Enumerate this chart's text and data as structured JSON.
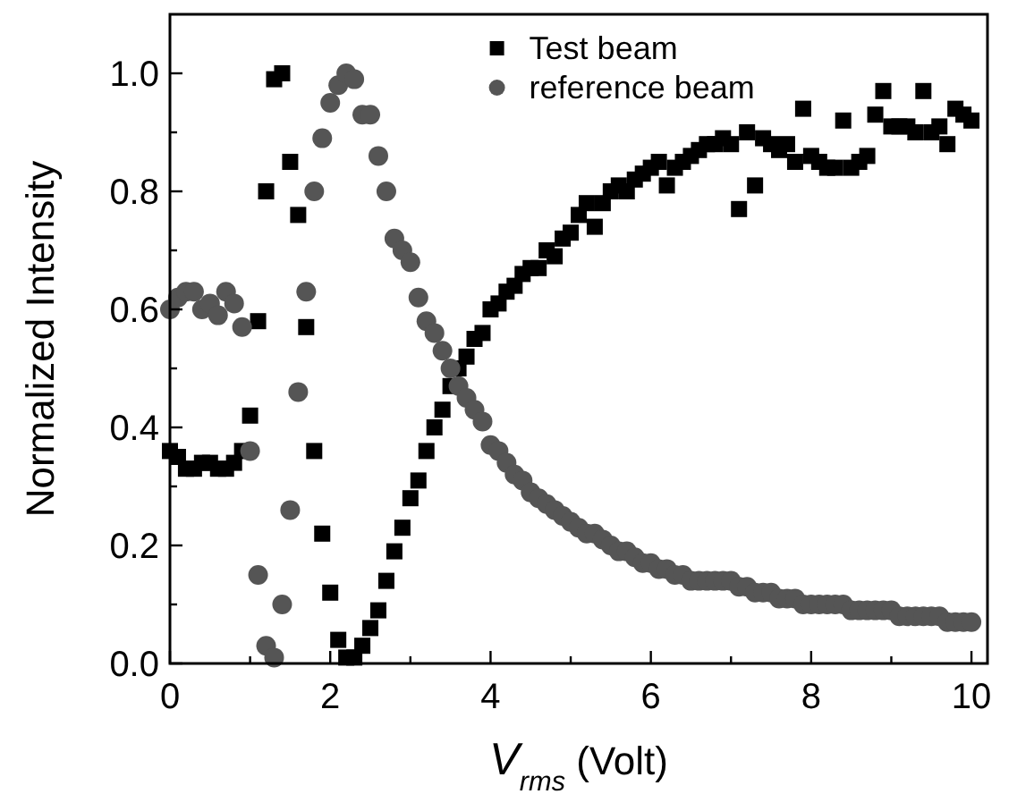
{
  "chart_data": {
    "type": "scatter",
    "xlabel": "V$_{rms}$ (Volt)",
    "ylabel": "Normalized Intensity",
    "x": [
      0,
      0.1,
      0.2,
      0.3,
      0.4,
      0.5,
      0.6,
      0.7,
      0.8,
      0.9,
      1,
      1.1,
      1.2,
      1.3,
      1.4,
      1.5,
      1.6,
      1.7,
      1.8,
      1.9,
      2,
      2.1,
      2.2,
      2.3,
      2.4,
      2.5,
      2.6,
      2.7,
      2.8,
      2.9,
      3,
      3.1,
      3.2,
      3.3,
      3.4,
      3.5,
      3.6,
      3.7,
      3.8,
      3.9,
      4,
      4.1,
      4.2,
      4.3,
      4.4,
      4.5,
      4.6,
      4.7,
      4.8,
      4.9,
      5,
      5.1,
      5.2,
      5.3,
      5.4,
      5.5,
      5.6,
      5.7,
      5.8,
      5.9,
      6,
      6.1,
      6.2,
      6.3,
      6.4,
      6.5,
      6.6,
      6.7,
      6.8,
      6.9,
      7,
      7.1,
      7.2,
      7.3,
      7.4,
      7.5,
      7.6,
      7.7,
      7.8,
      7.9,
      8,
      8.1,
      8.2,
      8.3,
      8.4,
      8.5,
      8.6,
      8.7,
      8.8,
      8.9,
      9,
      9.1,
      9.2,
      9.3,
      9.4,
      9.5,
      9.6,
      9.7,
      9.8,
      9.9,
      10
    ],
    "series": [
      {
        "name": "Test beam",
        "color": "#000000",
        "marker": "square",
        "values": [
          0.36,
          0.35,
          0.33,
          0.33,
          0.34,
          0.34,
          0.33,
          0.33,
          0.34,
          0.36,
          0.42,
          0.58,
          0.8,
          0.99,
          1.0,
          0.85,
          0.76,
          0.57,
          0.36,
          0.22,
          0.12,
          0.04,
          0.01,
          0.01,
          0.03,
          0.06,
          0.09,
          0.14,
          0.19,
          0.23,
          0.28,
          0.31,
          0.36,
          0.4,
          0.43,
          0.47,
          0.5,
          0.52,
          0.55,
          0.56,
          0.6,
          0.61,
          0.63,
          0.64,
          0.66,
          0.67,
          0.67,
          0.7,
          0.69,
          0.72,
          0.73,
          0.76,
          0.78,
          0.74,
          0.78,
          0.8,
          0.81,
          0.8,
          0.82,
          0.83,
          0.84,
          0.85,
          0.81,
          0.84,
          0.85,
          0.86,
          0.87,
          0.88,
          0.88,
          0.89,
          0.88,
          0.77,
          0.9,
          0.81,
          0.89,
          0.88,
          0.87,
          0.88,
          0.85,
          0.94,
          0.86,
          0.85,
          0.84,
          0.84,
          0.92,
          0.84,
          0.85,
          0.86,
          0.93,
          0.97,
          0.91,
          0.91,
          0.91,
          0.9,
          0.97,
          0.9,
          0.91,
          0.88,
          0.94,
          0.93,
          0.92
        ]
      },
      {
        "name": "reference beam",
        "color": "#555555",
        "marker": "circle",
        "values": [
          0.6,
          0.62,
          0.63,
          0.63,
          0.6,
          0.61,
          0.59,
          0.63,
          0.61,
          0.57,
          0.36,
          0.15,
          0.03,
          0.01,
          0.1,
          0.26,
          0.46,
          0.63,
          0.8,
          0.89,
          0.95,
          0.98,
          1.0,
          0.99,
          0.93,
          0.93,
          0.86,
          0.8,
          0.72,
          0.7,
          0.68,
          0.62,
          0.58,
          0.56,
          0.53,
          0.5,
          0.47,
          0.45,
          0.43,
          0.41,
          0.37,
          0.36,
          0.34,
          0.32,
          0.31,
          0.29,
          0.28,
          0.27,
          0.26,
          0.25,
          0.24,
          0.23,
          0.22,
          0.22,
          0.21,
          0.2,
          0.19,
          0.19,
          0.18,
          0.17,
          0.17,
          0.16,
          0.16,
          0.15,
          0.15,
          0.14,
          0.14,
          0.14,
          0.14,
          0.14,
          0.14,
          0.13,
          0.13,
          0.12,
          0.12,
          0.12,
          0.11,
          0.11,
          0.11,
          0.1,
          0.1,
          0.1,
          0.1,
          0.1,
          0.1,
          0.09,
          0.09,
          0.09,
          0.09,
          0.09,
          0.09,
          0.08,
          0.08,
          0.08,
          0.08,
          0.08,
          0.08,
          0.07,
          0.07,
          0.07,
          0.07
        ]
      }
    ],
    "xlim": [
      0,
      10.2
    ],
    "ylim": [
      0,
      1.1
    ],
    "xticks": [
      0,
      {
        "value": 1,
        "label": null
      },
      2,
      {
        "value": 3,
        "label": null
      },
      4,
      {
        "value": 5,
        "label": null
      },
      6,
      {
        "value": 7,
        "label": null
      },
      8,
      {
        "value": 9,
        "label": null
      },
      10
    ],
    "yticks": [
      {
        "value": 0,
        "label": "0.0"
      },
      {
        "value": 0.1,
        "label": null
      },
      {
        "value": 0.2,
        "label": "0.2"
      },
      {
        "value": 0.3,
        "label": null
      },
      {
        "value": 0.4,
        "label": "0.4"
      },
      {
        "value": 0.5,
        "label": null
      },
      {
        "value": 0.6,
        "label": "0.6"
      },
      {
        "value": 0.7,
        "label": null
      },
      {
        "value": 0.8,
        "label": "0.8"
      },
      {
        "value": 0.9,
        "label": null
      },
      {
        "value": 1.0,
        "label": "1.0"
      }
    ],
    "grid": false,
    "legend": "top"
  }
}
